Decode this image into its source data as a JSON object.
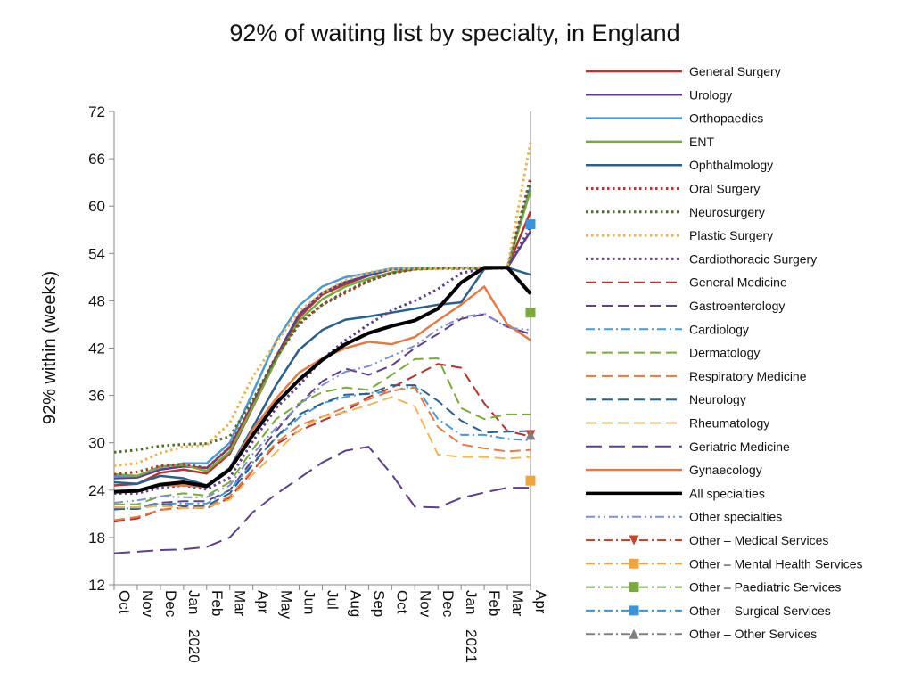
{
  "chart_data": {
    "type": "line",
    "title": "92% of waiting list by specialty, in England",
    "ylabel": "92% within  (weeks)",
    "xlabel": "",
    "ylim": [
      12,
      72
    ],
    "yticks": [
      12,
      18,
      24,
      30,
      36,
      42,
      48,
      54,
      60,
      66,
      72
    ],
    "grid": false,
    "legend_position": "right",
    "categories": [
      "Oct",
      "Nov",
      "Dec",
      "Jan",
      "Feb",
      "Mar",
      "Apr",
      "May",
      "Jun",
      "Jul",
      "Aug",
      "Sep",
      "Oct",
      "Nov",
      "Dec",
      "Jan",
      "Feb",
      "Mar",
      "Apr"
    ],
    "year_labels": [
      {
        "index": 3,
        "label": "2020"
      },
      {
        "index": 15,
        "label": "2021"
      }
    ],
    "series": [
      {
        "name": "General  Surgery",
        "color": "#b5352e",
        "dash": "solid",
        "width": 2.5,
        "values": [
          24.6,
          24.8,
          26.2,
          26.6,
          26.1,
          28.6,
          34.5,
          40.5,
          45.9,
          48.8,
          50.1,
          51.2,
          52.0,
          52.1,
          52.2,
          52.2,
          52.2,
          52.2,
          59.3
        ]
      },
      {
        "name": "Urology",
        "color": "#5e3f8b",
        "dash": "solid",
        "width": 2.5,
        "values": [
          25.5,
          25.6,
          26.6,
          27.0,
          26.8,
          29.4,
          35.0,
          40.9,
          46.3,
          49.0,
          50.4,
          51.2,
          52.0,
          52.1,
          52.2,
          52.2,
          52.2,
          52.2,
          56.8
        ]
      },
      {
        "name": "Orthopaedics",
        "color": "#4b9ad6",
        "dash": "solid",
        "width": 2.5,
        "values": [
          25.7,
          25.8,
          26.9,
          27.4,
          27.4,
          30.0,
          36.4,
          42.9,
          47.4,
          49.8,
          51.0,
          51.5,
          52.1,
          52.2,
          52.2,
          52.2,
          52.2,
          52.2,
          62.5
        ]
      },
      {
        "name": "ENT",
        "color": "#7aaa3c",
        "dash": "solid",
        "width": 2.5,
        "values": [
          26.0,
          25.8,
          27.0,
          27.2,
          26.4,
          28.9,
          34.6,
          40.5,
          45.5,
          48.2,
          49.8,
          50.8,
          51.6,
          52.0,
          52.1,
          52.2,
          52.2,
          52.2,
          62.0
        ]
      },
      {
        "name": "Ophthalmology",
        "color": "#2b5f8c",
        "dash": "solid",
        "width": 2.5,
        "values": [
          25.0,
          24.8,
          25.8,
          25.5,
          24.6,
          26.8,
          32.0,
          37.3,
          41.8,
          44.3,
          45.6,
          46.0,
          46.5,
          47.0,
          47.5,
          47.8,
          52.0,
          52.2,
          51.3
        ]
      },
      {
        "name": "Oral  Surgery",
        "color": "#b5352e",
        "dash": "dot",
        "width": 3,
        "values": [
          26.0,
          26.3,
          27.1,
          27.3,
          26.8,
          29.5,
          35.2,
          41.0,
          45.2,
          47.5,
          49.0,
          50.5,
          51.5,
          52.0,
          52.1,
          52.1,
          52.2,
          52.2,
          63.6
        ]
      },
      {
        "name": "Neurosurgery",
        "color": "#4f6b2a",
        "dash": "dot",
        "width": 3,
        "values": [
          28.8,
          29.1,
          29.6,
          29.8,
          29.9,
          30.8,
          35.5,
          40.8,
          45.0,
          47.5,
          49.2,
          50.5,
          51.5,
          52.0,
          52.1,
          52.1,
          52.1,
          52.1,
          63.2
        ]
      },
      {
        "name": "Plastic  Surgery",
        "color": "#e6b454",
        "dash": "dot",
        "width": 3,
        "values": [
          27.1,
          27.4,
          28.7,
          29.5,
          29.7,
          32.5,
          38.4,
          42.7,
          46.7,
          49.0,
          50.6,
          51.6,
          52.0,
          52.1,
          52.1,
          52.2,
          52.2,
          52.2,
          68.1
        ]
      },
      {
        "name": "Cardiothoracic  Surgery",
        "color": "#5e3f8b",
        "dash": "dot",
        "width": 3,
        "values": [
          23.6,
          23.6,
          24.3,
          24.6,
          24.1,
          25.6,
          30.2,
          34.4,
          37.3,
          40.6,
          43.0,
          45.0,
          46.8,
          48.0,
          49.5,
          51.5,
          52.1,
          52.2,
          57.4
        ]
      },
      {
        "name": "General  Medicine",
        "color": "#b5352e",
        "dash": "dash",
        "width": 2,
        "values": [
          20.0,
          20.4,
          21.5,
          21.8,
          21.7,
          23.0,
          26.5,
          29.8,
          31.5,
          32.8,
          34.0,
          35.8,
          37.0,
          38.5,
          40.0,
          39.5,
          35.0,
          31.5,
          30.8
        ]
      },
      {
        "name": "Gastroenterology",
        "color": "#5e3f8b",
        "dash": "dash",
        "width": 2,
        "values": [
          21.8,
          21.8,
          22.4,
          22.6,
          22.6,
          24.0,
          27.9,
          31.5,
          34.9,
          37.8,
          39.4,
          38.6,
          39.8,
          42.0,
          43.8,
          45.7,
          46.3,
          44.7,
          43.8
        ]
      },
      {
        "name": "Cardiology",
        "color": "#4b9ad6",
        "dash": "dashdot",
        "width": 2,
        "values": [
          21.5,
          21.8,
          22.3,
          22.3,
          22.3,
          24.0,
          27.5,
          30.6,
          33.2,
          35.0,
          35.8,
          36.3,
          36.5,
          37.3,
          33.0,
          31.0,
          31.0,
          30.5,
          30.3
        ]
      },
      {
        "name": "Dermatology",
        "color": "#7aaa3c",
        "dash": "dash",
        "width": 2,
        "values": [
          22.2,
          22.2,
          23.2,
          23.6,
          23.3,
          25.0,
          29.2,
          33.0,
          35.0,
          36.4,
          37.0,
          36.7,
          38.6,
          40.6,
          40.7,
          34.4,
          33.0,
          33.6,
          33.6
        ]
      },
      {
        "name": "Respiratory  Medicine",
        "color": "#e47b45",
        "dash": "dash",
        "width": 2,
        "values": [
          20.2,
          20.6,
          21.5,
          21.7,
          21.8,
          23.2,
          26.6,
          30.0,
          32.2,
          33.3,
          34.5,
          35.5,
          36.6,
          37.0,
          32.0,
          29.8,
          29.3,
          28.9,
          29.1
        ]
      },
      {
        "name": "Neurology",
        "color": "#2b5f8c",
        "dash": "dash",
        "width": 2,
        "values": [
          21.6,
          21.6,
          22.2,
          22.0,
          22.0,
          23.6,
          27.3,
          30.7,
          33.6,
          35.0,
          36.1,
          36.2,
          37.3,
          37.3,
          35.3,
          32.8,
          31.3,
          31.4,
          31.5
        ]
      },
      {
        "name": "Rheumatology",
        "color": "#f0b858",
        "dash": "dash",
        "width": 2,
        "values": [
          21.8,
          21.8,
          22.0,
          21.7,
          21.8,
          22.8,
          26.0,
          28.8,
          31.6,
          33.3,
          33.9,
          34.8,
          35.8,
          34.6,
          28.5,
          28.2,
          28.2,
          28.0,
          28.2
        ]
      },
      {
        "name": "Geriatric  Medicine",
        "color": "#5e3f8b",
        "dash": "dashlong",
        "width": 2,
        "values": [
          16.0,
          16.2,
          16.4,
          16.5,
          16.8,
          18.0,
          21.2,
          23.5,
          25.5,
          27.5,
          29.0,
          29.5,
          26.0,
          21.9,
          21.8,
          23.0,
          23.7,
          24.3,
          24.3
        ]
      },
      {
        "name": "Gynaecology",
        "color": "#e47b45",
        "dash": "solid",
        "width": 2.5,
        "values": [
          23.8,
          23.8,
          24.6,
          24.6,
          24.4,
          26.6,
          31.7,
          35.6,
          38.9,
          40.7,
          42.0,
          42.8,
          42.5,
          43.4,
          45.5,
          47.5,
          49.8,
          45.0,
          43.0
        ]
      },
      {
        "name": "All  specialties",
        "color": "#000000",
        "dash": "solid",
        "width": 4,
        "values": [
          23.8,
          23.9,
          24.7,
          25.0,
          24.5,
          26.6,
          31.0,
          35.0,
          38.0,
          40.5,
          42.5,
          43.9,
          44.8,
          45.5,
          47.0,
          50.3,
          52.2,
          52.2,
          48.9
        ]
      },
      {
        "name": "Other  specialties",
        "color": "#7f8fd0",
        "dash": "dashdotdot",
        "width": 2,
        "values": [
          22.4,
          22.7,
          23.2,
          23.1,
          23.1,
          24.6,
          28.6,
          31.9,
          34.8,
          37.3,
          39.0,
          39.7,
          41.0,
          42.3,
          44.4,
          45.9,
          46.4,
          44.6,
          44.3
        ]
      },
      {
        "name": "Other  –  Medical  Services",
        "color": "#c9442b",
        "dash": "dashdot",
        "width": 2,
        "marker": "triangle-down",
        "values": [
          null,
          null,
          null,
          null,
          null,
          null,
          null,
          null,
          null,
          null,
          null,
          null,
          null,
          null,
          null,
          null,
          null,
          null,
          31.0
        ]
      },
      {
        "name": "Other  –  Mental  Health  Services",
        "color": "#f0a33f",
        "dash": "dashdot",
        "width": 2,
        "marker": "square",
        "values": [
          null,
          null,
          null,
          null,
          null,
          null,
          null,
          null,
          null,
          null,
          null,
          null,
          null,
          null,
          null,
          null,
          null,
          null,
          25.2
        ]
      },
      {
        "name": "Other  –  Paediatric  Services",
        "color": "#7aaa3c",
        "dash": "dashdot",
        "width": 2,
        "marker": "square",
        "values": [
          null,
          null,
          null,
          null,
          null,
          null,
          null,
          null,
          null,
          null,
          null,
          null,
          null,
          null,
          null,
          null,
          null,
          null,
          46.5
        ]
      },
      {
        "name": "Other  –  Surgical  Services",
        "color": "#3d93d8",
        "dash": "dashdot",
        "width": 2,
        "marker": "square",
        "values": [
          null,
          null,
          null,
          null,
          null,
          null,
          null,
          null,
          null,
          null,
          null,
          null,
          null,
          null,
          null,
          null,
          null,
          null,
          57.7
        ]
      },
      {
        "name": "Other  –  Other  Services",
        "color": "#808080",
        "dash": "dashdot",
        "width": 2,
        "marker": "triangle-up",
        "values": [
          null,
          null,
          null,
          null,
          null,
          null,
          null,
          null,
          null,
          null,
          null,
          null,
          null,
          null,
          null,
          null,
          null,
          null,
          31.0
        ]
      }
    ]
  }
}
